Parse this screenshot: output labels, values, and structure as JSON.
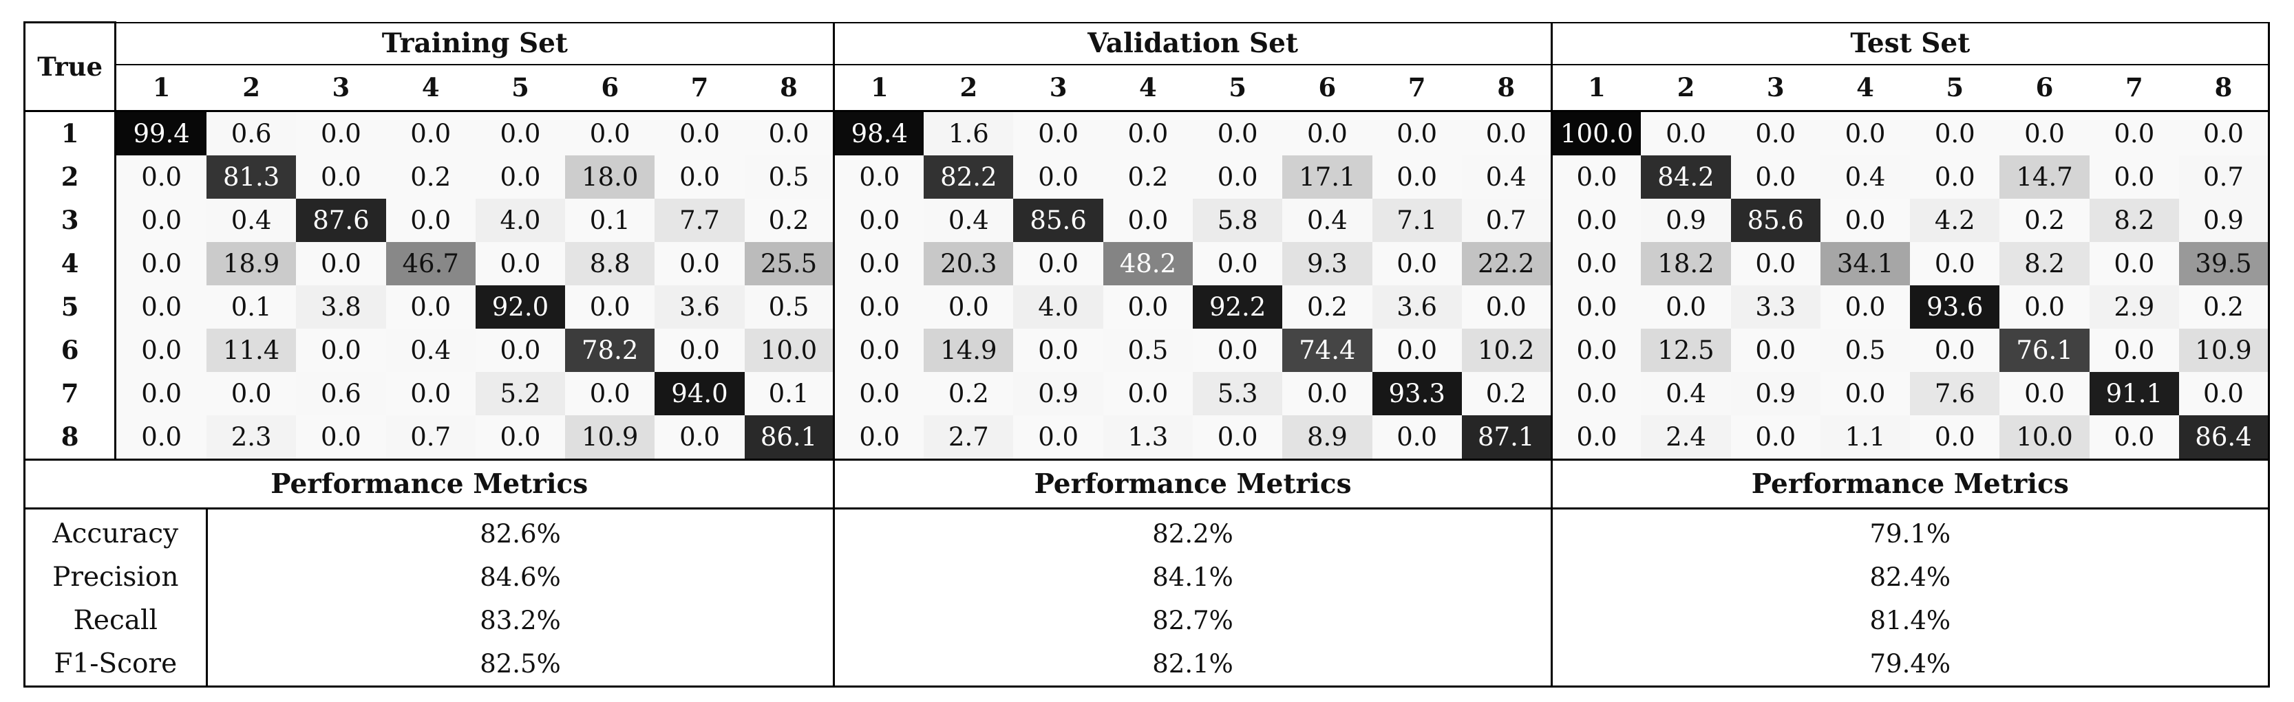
{
  "table": {
    "corner_label": "True",
    "class_labels": [
      "1",
      "2",
      "3",
      "4",
      "5",
      "6",
      "7",
      "8"
    ],
    "sets": [
      {
        "name": "Training Set",
        "matrix": [
          [
            99.4,
            0.6,
            0.0,
            0.0,
            0.0,
            0.0,
            0.0,
            0.0
          ],
          [
            0.0,
            81.3,
            0.0,
            0.2,
            0.0,
            18.0,
            0.0,
            0.5
          ],
          [
            0.0,
            0.4,
            87.6,
            0.0,
            4.0,
            0.1,
            7.7,
            0.2
          ],
          [
            0.0,
            18.9,
            0.0,
            46.7,
            0.0,
            8.8,
            0.0,
            25.5
          ],
          [
            0.0,
            0.1,
            3.8,
            0.0,
            92.0,
            0.0,
            3.6,
            0.5
          ],
          [
            0.0,
            11.4,
            0.0,
            0.4,
            0.0,
            78.2,
            0.0,
            10.0
          ],
          [
            0.0,
            0.0,
            0.6,
            0.0,
            5.2,
            0.0,
            94.0,
            0.1
          ],
          [
            0.0,
            2.3,
            0.0,
            0.7,
            0.0,
            10.9,
            0.0,
            86.1
          ]
        ],
        "metrics_title": "Performance Metrics",
        "metrics": [
          "82.6%",
          "84.6%",
          "83.2%",
          "82.5%"
        ]
      },
      {
        "name": "Validation Set",
        "matrix": [
          [
            98.4,
            1.6,
            0.0,
            0.0,
            0.0,
            0.0,
            0.0,
            0.0
          ],
          [
            0.0,
            82.2,
            0.0,
            0.2,
            0.0,
            17.1,
            0.0,
            0.4
          ],
          [
            0.0,
            0.4,
            85.6,
            0.0,
            5.8,
            0.4,
            7.1,
            0.7
          ],
          [
            0.0,
            20.3,
            0.0,
            48.2,
            0.0,
            9.3,
            0.0,
            22.2
          ],
          [
            0.0,
            0.0,
            4.0,
            0.0,
            92.2,
            0.2,
            3.6,
            0.0
          ],
          [
            0.0,
            14.9,
            0.0,
            0.5,
            0.0,
            74.4,
            0.0,
            10.2
          ],
          [
            0.0,
            0.2,
            0.9,
            0.0,
            5.3,
            0.0,
            93.3,
            0.2
          ],
          [
            0.0,
            2.7,
            0.0,
            1.3,
            0.0,
            8.9,
            0.0,
            87.1
          ]
        ],
        "metrics_title": "Performance Metrics",
        "metrics": [
          "82.2%",
          "84.1%",
          "82.7%",
          "82.1%"
        ]
      },
      {
        "name": "Test Set",
        "matrix": [
          [
            100.0,
            0.0,
            0.0,
            0.0,
            0.0,
            0.0,
            0.0,
            0.0
          ],
          [
            0.0,
            84.2,
            0.0,
            0.4,
            0.0,
            14.7,
            0.0,
            0.7
          ],
          [
            0.0,
            0.9,
            85.6,
            0.0,
            4.2,
            0.2,
            8.2,
            0.9
          ],
          [
            0.0,
            18.2,
            0.0,
            34.1,
            0.0,
            8.2,
            0.0,
            39.5
          ],
          [
            0.0,
            0.0,
            3.3,
            0.0,
            93.6,
            0.0,
            2.9,
            0.2
          ],
          [
            0.0,
            12.5,
            0.0,
            0.5,
            0.0,
            76.1,
            0.0,
            10.9
          ],
          [
            0.0,
            0.4,
            0.9,
            0.0,
            7.6,
            0.0,
            91.1,
            0.0
          ],
          [
            0.0,
            2.4,
            0.0,
            1.1,
            0.0,
            10.0,
            0.0,
            86.4
          ]
        ],
        "metrics_title": "Performance Metrics",
        "metrics": [
          "79.1%",
          "82.4%",
          "81.4%",
          "79.4%"
        ]
      }
    ],
    "metric_names": [
      "Accuracy",
      "Precision",
      "Recall",
      "F1-Score"
    ]
  }
}
